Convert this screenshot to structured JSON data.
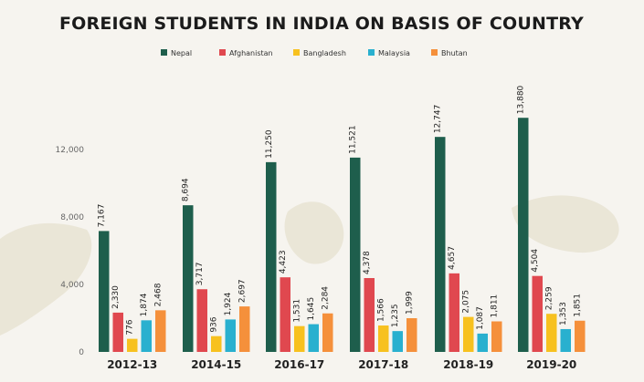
{
  "chart_data": {
    "type": "bar",
    "title": "FOREIGN STUDENTS IN INDIA ON BASIS OF COUNTRY",
    "xlabel": "",
    "ylabel": "",
    "categories": [
      "2012-13",
      "2014-15",
      "2016-17",
      "2017-18",
      "2018-19",
      "2019-20"
    ],
    "series": [
      {
        "name": "Nepal",
        "color": "#1e5e4c",
        "values": [
          7167,
          8694,
          11250,
          11521,
          12747,
          13880
        ],
        "labels": [
          "7,167",
          "8,694",
          "11,250",
          "11,521",
          "12,747",
          "13,880"
        ]
      },
      {
        "name": "Afghanistan",
        "color": "#e0484f",
        "values": [
          2330,
          3717,
          4423,
          4378,
          4657,
          4504
        ],
        "labels": [
          "2,330",
          "3,717",
          "4,423",
          "4,378",
          "4,657",
          "4,504"
        ]
      },
      {
        "name": "Bangladesh",
        "color": "#f7c11f",
        "values": [
          776,
          936,
          1531,
          1566,
          2075,
          2259
        ],
        "labels": [
          "776",
          "936",
          "1,531",
          "1,566",
          "2,075",
          "2,259"
        ]
      },
      {
        "name": "Malaysia",
        "color": "#29b0cf",
        "values": [
          1874,
          1924,
          1645,
          1235,
          1087,
          1353
        ],
        "labels": [
          "1,874",
          "1,924",
          "1,645",
          "1,235",
          "1,087",
          "1,353"
        ]
      },
      {
        "name": "Bhutan",
        "color": "#f5903b",
        "values": [
          2468,
          2697,
          2284,
          1999,
          1811,
          1851
        ],
        "labels": [
          "2,468",
          "2,697",
          "2,284",
          "1,999",
          "1,811",
          "1,851"
        ]
      }
    ],
    "yticks": [
      0,
      4000,
      8000,
      12000
    ],
    "ytick_labels": [
      "0",
      "4,000",
      "8,000",
      "12,000"
    ],
    "ylim": [
      0,
      16000
    ],
    "grid": false,
    "legend_position": "top-center"
  }
}
